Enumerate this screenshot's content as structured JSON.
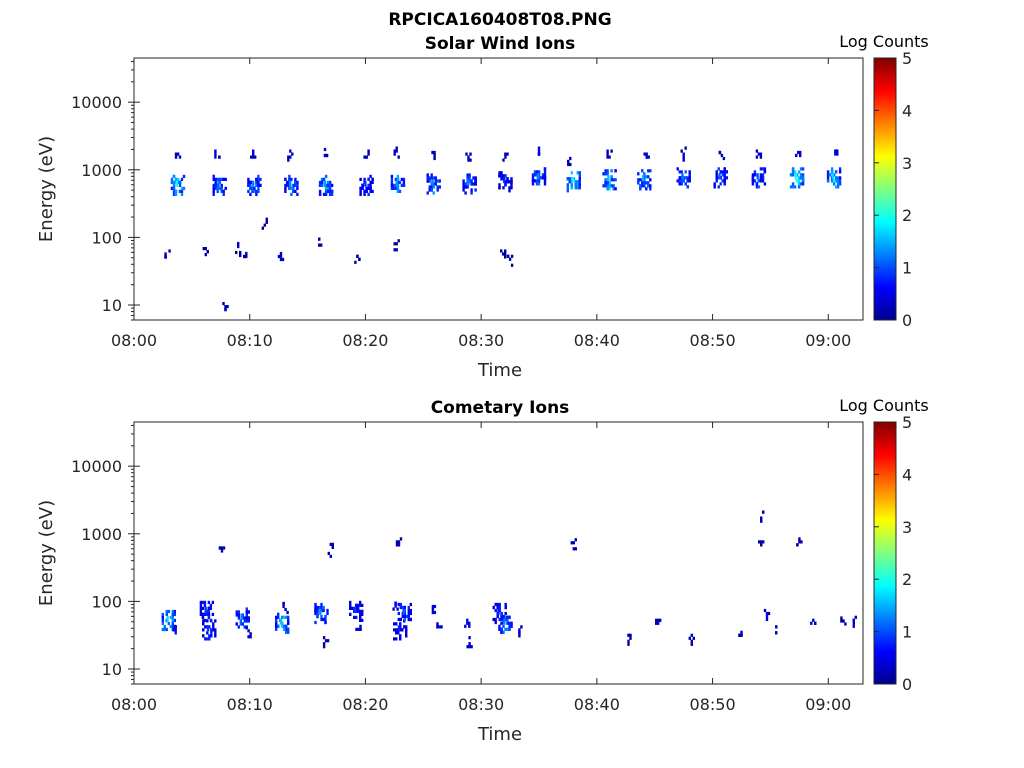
{
  "figure_title": "RPCICA160408T08.PNG",
  "chart_data": [
    {
      "type": "heatmap",
      "title": "Solar Wind Ions",
      "xlabel": "Time",
      "ylabel": "Energy (eV)",
      "x_tick_labels": [
        "08:00",
        "08:10",
        "08:20",
        "08:30",
        "08:40",
        "08:50",
        "09:00"
      ],
      "y_tick_labels": [
        "10",
        "100",
        "1000",
        "10000"
      ],
      "y_scale": "log",
      "x_range_minutes": [
        0,
        63
      ],
      "y_range_eV": [
        6,
        45000
      ],
      "colorbar": {
        "label": "Log Counts",
        "ticks": [
          "0",
          "1",
          "2",
          "3",
          "4",
          "5"
        ],
        "range": [
          0,
          5
        ],
        "colormap": "jet"
      },
      "clusters": [
        {
          "t": 3.7,
          "e": 620,
          "v": 1.9
        },
        {
          "t": 3.7,
          "e": 1800,
          "v": 0.6
        },
        {
          "t": 7.3,
          "e": 620,
          "v": 1.2
        },
        {
          "t": 7.1,
          "e": 1800,
          "v": 0.7
        },
        {
          "t": 10.3,
          "e": 620,
          "v": 1.3
        },
        {
          "t": 10.2,
          "e": 1800,
          "v": 0.5
        },
        {
          "t": 13.5,
          "e": 620,
          "v": 1.3
        },
        {
          "t": 13.4,
          "e": 1800,
          "v": 0.6
        },
        {
          "t": 16.5,
          "e": 620,
          "v": 1.4
        },
        {
          "t": 16.4,
          "e": 1900,
          "v": 0.6
        },
        {
          "t": 20.0,
          "e": 620,
          "v": 0.9
        },
        {
          "t": 20.0,
          "e": 1800,
          "v": 0.4
        },
        {
          "t": 22.7,
          "e": 620,
          "v": 1.4
        },
        {
          "t": 22.6,
          "e": 1800,
          "v": 0.5
        },
        {
          "t": 25.8,
          "e": 650,
          "v": 1.3
        },
        {
          "t": 25.7,
          "e": 1900,
          "v": 0.5
        },
        {
          "t": 28.9,
          "e": 650,
          "v": 1.2
        },
        {
          "t": 28.8,
          "e": 1800,
          "v": 0.5
        },
        {
          "t": 32.0,
          "e": 700,
          "v": 0.8
        },
        {
          "t": 32.0,
          "e": 1800,
          "v": 0.4
        },
        {
          "t": 34.9,
          "e": 800,
          "v": 1.3
        },
        {
          "t": 34.9,
          "e": 1800,
          "v": 0.7
        },
        {
          "t": 37.9,
          "e": 700,
          "v": 1.9
        },
        {
          "t": 37.6,
          "e": 1400,
          "v": 0.4
        },
        {
          "t": 41.0,
          "e": 750,
          "v": 1.6
        },
        {
          "t": 41.0,
          "e": 1800,
          "v": 0.5
        },
        {
          "t": 44.0,
          "e": 750,
          "v": 1.5
        },
        {
          "t": 44.2,
          "e": 1800,
          "v": 0.5
        },
        {
          "t": 47.4,
          "e": 800,
          "v": 1.2
        },
        {
          "t": 47.4,
          "e": 1800,
          "v": 0.5
        },
        {
          "t": 50.6,
          "e": 800,
          "v": 1.1
        },
        {
          "t": 50.7,
          "e": 1900,
          "v": 0.5
        },
        {
          "t": 53.9,
          "e": 800,
          "v": 1.1
        },
        {
          "t": 53.9,
          "e": 1800,
          "v": 0.6
        },
        {
          "t": 57.2,
          "e": 800,
          "v": 1.9
        },
        {
          "t": 57.3,
          "e": 1900,
          "v": 0.7
        },
        {
          "t": 60.4,
          "e": 800,
          "v": 1.7
        },
        {
          "t": 60.5,
          "e": 2000,
          "v": 0.6
        },
        {
          "t": 2.8,
          "e": 60,
          "v": 0.5
        },
        {
          "t": 6.1,
          "e": 65,
          "v": 0.3
        },
        {
          "t": 7.8,
          "e": 10,
          "v": 0.4
        },
        {
          "t": 8.9,
          "e": 70,
          "v": 0.3
        },
        {
          "t": 9.6,
          "e": 55,
          "v": 0.4
        },
        {
          "t": 12.6,
          "e": 55,
          "v": 0.5
        },
        {
          "t": 11.2,
          "e": 160,
          "v": 0.3
        },
        {
          "t": 15.9,
          "e": 90,
          "v": 0.3
        },
        {
          "t": 19.2,
          "e": 50,
          "v": 0.3
        },
        {
          "t": 22.6,
          "e": 85,
          "v": 0.3
        },
        {
          "t": 31.8,
          "e": 60,
          "v": 0.3
        },
        {
          "t": 32.4,
          "e": 50,
          "v": 0.3
        }
      ]
    },
    {
      "type": "heatmap",
      "title": "Cometary Ions",
      "xlabel": "Time",
      "ylabel": "Energy (eV)",
      "x_tick_labels": [
        "08:00",
        "08:10",
        "08:20",
        "08:30",
        "08:40",
        "08:50",
        "09:00"
      ],
      "y_tick_labels": [
        "10",
        "100",
        "1000",
        "10000"
      ],
      "y_scale": "log",
      "x_range_minutes": [
        0,
        63
      ],
      "y_range_eV": [
        6,
        45000
      ],
      "colorbar": {
        "label": "Log Counts",
        "ticks": [
          "0",
          "1",
          "2",
          "3",
          "4",
          "5"
        ],
        "range": [
          0,
          5
        ],
        "colormap": "jet"
      },
      "clusters": [
        {
          "t": 2.9,
          "e": 55,
          "v": 1.8
        },
        {
          "t": 3.5,
          "e": 40,
          "v": 0.7
        },
        {
          "t": 6.2,
          "e": 75,
          "v": 0.9
        },
        {
          "t": 6.4,
          "e": 40,
          "v": 0.9
        },
        {
          "t": 9.3,
          "e": 60,
          "v": 1.3
        },
        {
          "t": 9.8,
          "e": 35,
          "v": 0.6
        },
        {
          "t": 12.7,
          "e": 50,
          "v": 1.6
        },
        {
          "t": 13.0,
          "e": 80,
          "v": 0.5
        },
        {
          "t": 16.1,
          "e": 70,
          "v": 1.3
        },
        {
          "t": 16.5,
          "e": 25,
          "v": 0.4
        },
        {
          "t": 19.1,
          "e": 75,
          "v": 0.9
        },
        {
          "t": 19.3,
          "e": 45,
          "v": 0.7
        },
        {
          "t": 22.5,
          "e": 90,
          "v": 0.7
        },
        {
          "t": 22.9,
          "e": 40,
          "v": 0.8
        },
        {
          "t": 23.3,
          "e": 70,
          "v": 1.1
        },
        {
          "t": 25.9,
          "e": 80,
          "v": 0.7
        },
        {
          "t": 26.3,
          "e": 40,
          "v": 0.7
        },
        {
          "t": 28.7,
          "e": 50,
          "v": 0.7
        },
        {
          "t": 28.9,
          "e": 25,
          "v": 0.5
        },
        {
          "t": 31.5,
          "e": 70,
          "v": 0.8
        },
        {
          "t": 32.0,
          "e": 50,
          "v": 1.3
        },
        {
          "t": 33.2,
          "e": 40,
          "v": 0.5
        },
        {
          "t": 7.5,
          "e": 650,
          "v": 0.3
        },
        {
          "t": 16.9,
          "e": 600,
          "v": 0.3
        },
        {
          "t": 22.8,
          "e": 800,
          "v": 0.3
        },
        {
          "t": 37.9,
          "e": 700,
          "v": 0.4
        },
        {
          "t": 42.8,
          "e": 30,
          "v": 0.3
        },
        {
          "t": 45.2,
          "e": 50,
          "v": 0.4
        },
        {
          "t": 48.1,
          "e": 30,
          "v": 0.3
        },
        {
          "t": 52.4,
          "e": 30,
          "v": 0.4
        },
        {
          "t": 54.1,
          "e": 800,
          "v": 0.3
        },
        {
          "t": 54.1,
          "e": 1800,
          "v": 0.3
        },
        {
          "t": 54.6,
          "e": 70,
          "v": 0.6
        },
        {
          "t": 55.4,
          "e": 40,
          "v": 0.4
        },
        {
          "t": 57.4,
          "e": 800,
          "v": 0.4
        },
        {
          "t": 58.6,
          "e": 50,
          "v": 0.4
        },
        {
          "t": 61.2,
          "e": 60,
          "v": 0.4
        },
        {
          "t": 62.1,
          "e": 50,
          "v": 0.5
        }
      ]
    }
  ]
}
